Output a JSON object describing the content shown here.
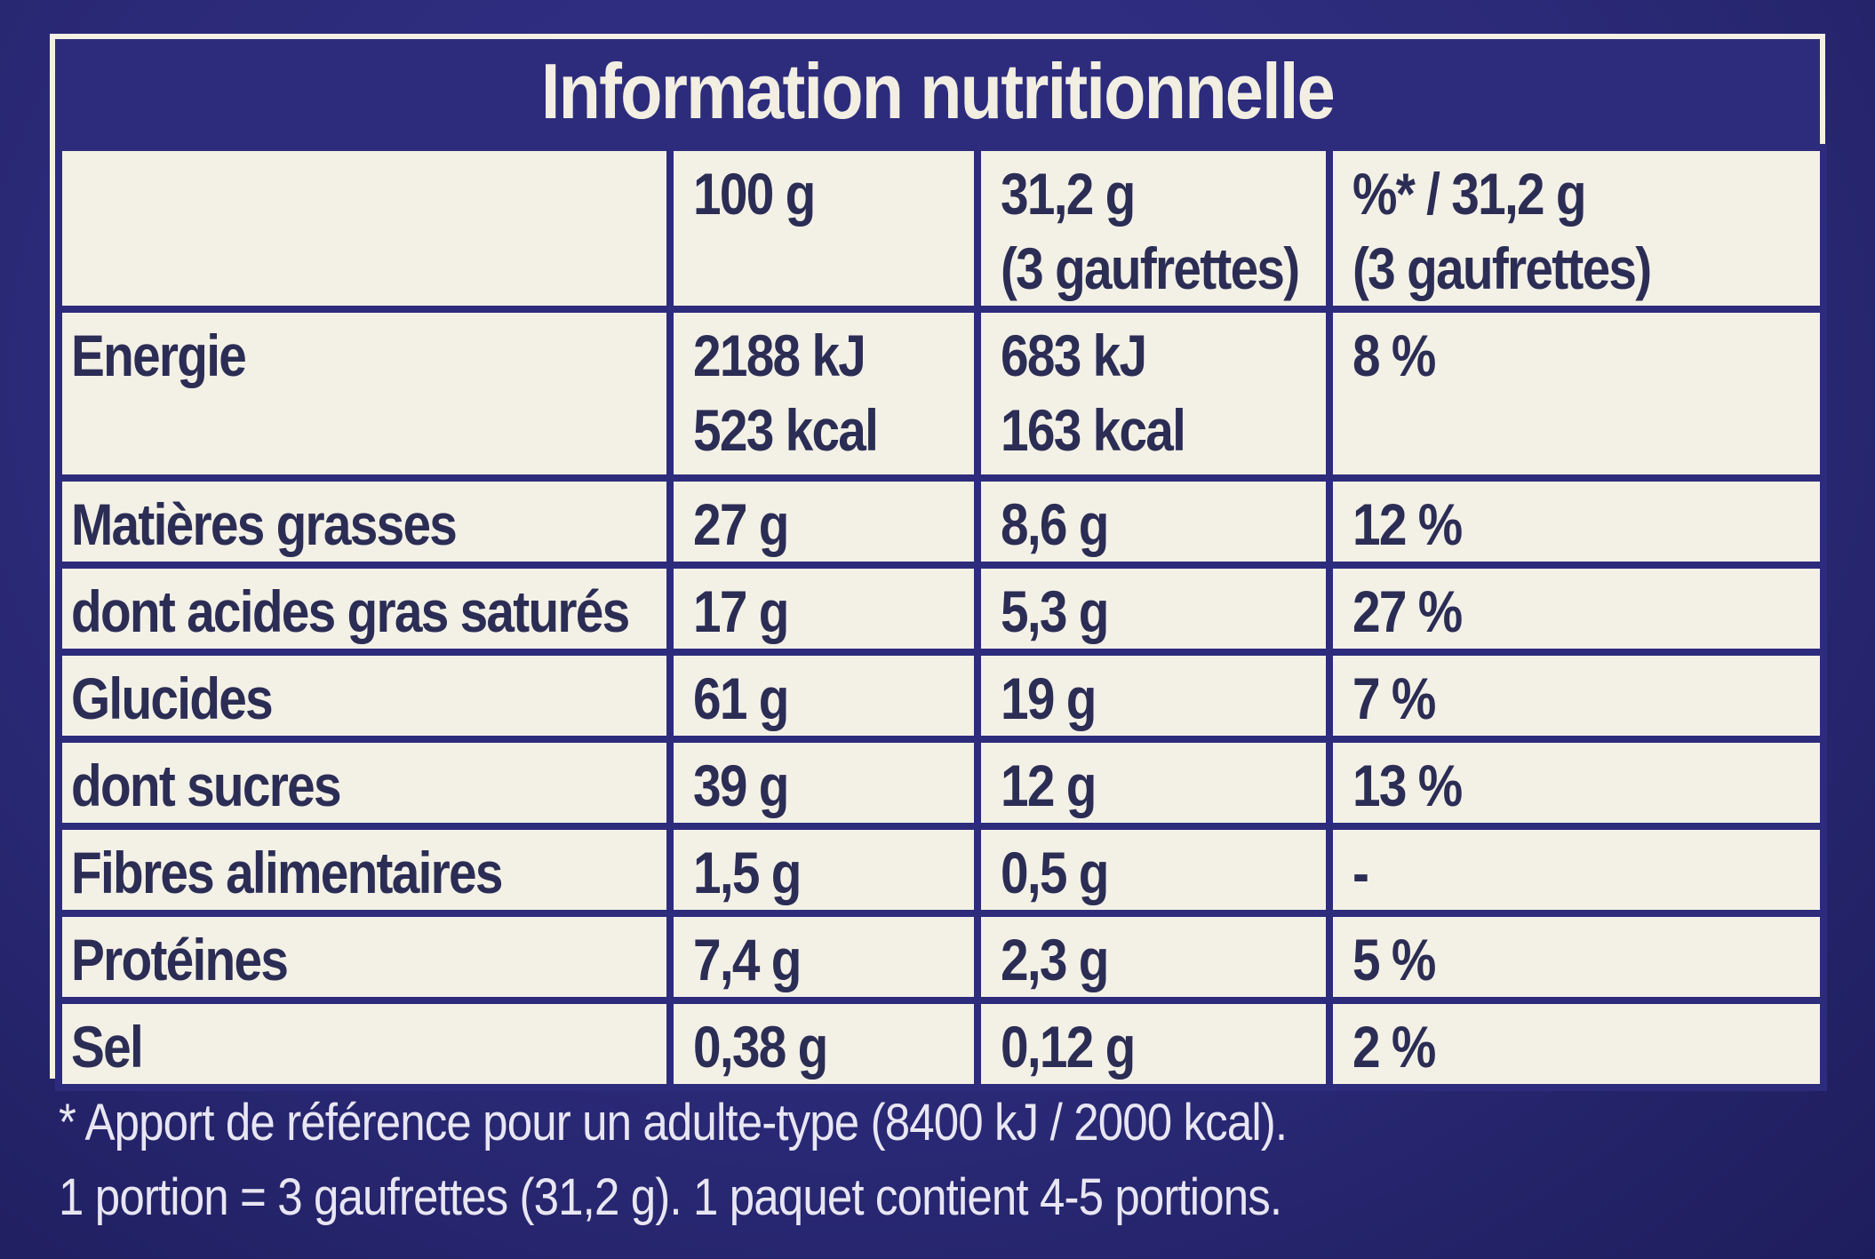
{
  "title": "Information nutritionnelle",
  "columns": {
    "col_100g": "100 g",
    "col_portion_l1": "31,2 g",
    "col_portion_l2": "(3 gaufrettes)",
    "col_ri_l1": "%* / 31,2 g",
    "col_ri_l2": "(3 gaufrettes)"
  },
  "rows": [
    {
      "label": "Energie",
      "per100": "2188 kJ",
      "per100_2": "523 kcal",
      "portion": "683 kJ",
      "portion_2": "163 kcal",
      "ri": "8 %"
    },
    {
      "label": "Matières grasses",
      "per100": "27 g",
      "portion": "8,6 g",
      "ri": "12 %"
    },
    {
      "label": "dont acides gras saturés",
      "per100": "17 g",
      "portion": "5,3 g",
      "ri": "27 %"
    },
    {
      "label": "Glucides",
      "per100": "61 g",
      "portion": "19 g",
      "ri": "7 %"
    },
    {
      "label": "dont sucres",
      "per100": "39 g",
      "portion": "12 g",
      "ri": "13 %"
    },
    {
      "label": "Fibres alimentaires",
      "per100": "1,5 g",
      "portion": "0,5 g",
      "ri": "-"
    },
    {
      "label": "Protéines",
      "per100": "7,4 g",
      "portion": "2,3 g",
      "ri": "5 %"
    },
    {
      "label": "Sel",
      "per100": "0,38 g",
      "portion": "0,12 g",
      "ri": "2 %"
    }
  ],
  "footnote": {
    "line1": "* Apport de référence pour un adulte-type (8400 kJ / 2000 kcal).",
    "line2": "1 portion = 3 gaufrettes (31,2 g). 1 paquet contient 4-5 portions."
  },
  "colors": {
    "background": "#2b2a78",
    "table_bg": "#f3f1e6",
    "text": "#2c2d55"
  }
}
